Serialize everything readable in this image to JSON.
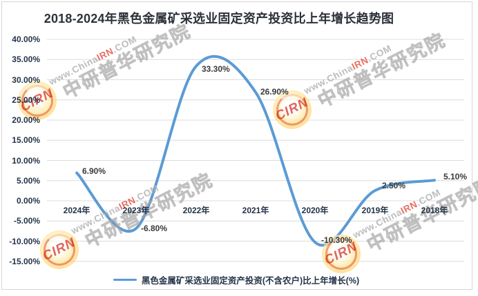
{
  "title": "2018-2024年黑色金属矿采选业固定资产投资比上年增长趋势图",
  "legend": {
    "label": "黑色金属矿采选业固定资产投资(不含农户)比上年增长(%)"
  },
  "watermark": {
    "url_prefix": "www.China",
    "url_highlight": "IRN",
    "url_suffix": ".COM",
    "brand": "中研普华研究院",
    "badge": "CIRN"
  },
  "colors": {
    "line": "#5B9BD5",
    "grid": "#DCDCDC",
    "axis_text": "#233347",
    "data_label": "#3A3A3A",
    "title_text": "#2B3039",
    "watermark_red": "#E45546",
    "watermark_gray": "#B2B2B2"
  },
  "chart_data": {
    "type": "line",
    "smooth": true,
    "title": "2018-2024年黑色金属矿采选业固定资产投资比上年增长趋势图",
    "series_name": "黑色金属矿采选业固定资产投资(不含农户)比上年增长(%)",
    "categories": [
      "2024年",
      "2023年",
      "2022年",
      "2021年",
      "2020年",
      "2019年",
      "2018年"
    ],
    "values": [
      6.9,
      -6.8,
      33.3,
      26.9,
      -10.3,
      2.5,
      5.1
    ],
    "data_labels": [
      "6.90%",
      "-6.80%",
      "33.30%",
      "26.90%",
      "-10.30%",
      "2.50%",
      "5.10%"
    ],
    "y_tick_labels": [
      "40.00%",
      "35.00%",
      "30.00%",
      "25.00%",
      "20.00%",
      "15.00%",
      "10.00%",
      "5.00%",
      "0.00%",
      "-5.00%",
      "-10.00%",
      "-15.00%"
    ],
    "y_tick_values": [
      40,
      35,
      30,
      25,
      20,
      15,
      10,
      5,
      0,
      -5,
      -10,
      -15
    ],
    "ylim": [
      -15,
      40
    ],
    "xlabel": "",
    "ylabel": "",
    "grid": true,
    "legend_position": "bottom",
    "x_labels_position": "zero-line"
  }
}
